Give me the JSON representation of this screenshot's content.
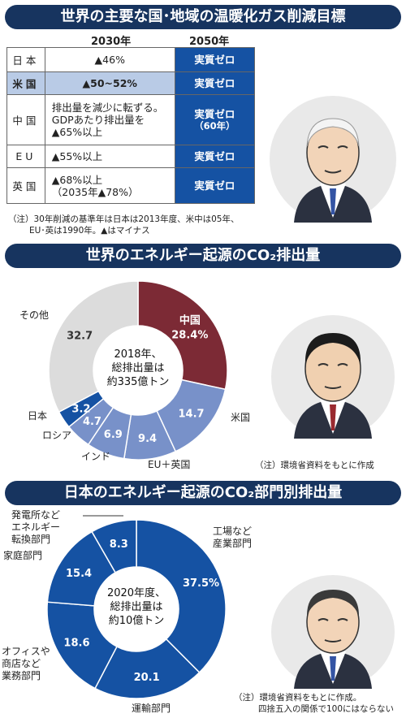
{
  "section1": {
    "title": "世界の主要な国･地域の温暖化ガス削減目標",
    "col_2030": "2030年",
    "col_2050": "2050年",
    "rows": [
      {
        "country": "日本",
        "y2030": [
          "▲46%"
        ],
        "y2050": [
          "実質ゼロ"
        ]
      },
      {
        "country": "米国",
        "y2030": [
          "▲50~52%"
        ],
        "y2050": [
          "実質ゼロ"
        ]
      },
      {
        "country": "中国",
        "y2030": [
          "排出量を減少に転ずる。",
          "GDPあたり排出量を",
          "▲65%以上"
        ],
        "y2050": [
          "実質ゼロ",
          "（60年）"
        ]
      },
      {
        "country": "EU",
        "y2030": [
          "▲55%以上"
        ],
        "y2050": [
          "実質ゼロ"
        ]
      },
      {
        "country": "英国",
        "y2030": [
          "▲68%以上",
          "（2035年▲78%）"
        ],
        "y2050": [
          "実質ゼロ"
        ]
      }
    ],
    "note_line1": "（注）30年削減の基準年は日本は2013年度、米中は05年、",
    "note_line2": "EU･英は1990年。▲はマイナス"
  },
  "section2": {
    "title": "世界のエネルギー起源のCO₂排出量",
    "center": [
      "2018年、",
      "総排出量は",
      "約335億トン"
    ],
    "note": "（注）環境省資料をもとに作成"
  },
  "section3": {
    "title": "日本のエネルギー起源のCO₂部門別排出量",
    "center": [
      "2020年度、",
      "総排出量は",
      "約10億トン"
    ],
    "note_line1": "（注）環境省資料をもとに作成。",
    "note_line2": "四捨五入の関係で100にはならない"
  },
  "chart_data": [
    {
      "type": "pie",
      "title": "世界のエネルギー起源のCO₂排出量",
      "categories": [
        "中国",
        "米国",
        "EU＋英国",
        "インド",
        "ロシア",
        "日本",
        "その他"
      ],
      "values": [
        28.4,
        14.7,
        9.4,
        6.9,
        4.7,
        3.2,
        32.7
      ],
      "value_labels": [
        "28.4%",
        "14.7",
        "9.4",
        "6.9",
        "4.7",
        "3.2",
        "32.7"
      ],
      "colors": [
        "#7c2a35",
        "#7891c9",
        "#7891c9",
        "#7891c9",
        "#7891c9",
        "#1552a3",
        "#dcdcdc"
      ],
      "donut": true
    },
    {
      "type": "pie",
      "title": "日本のエネルギー起源のCO₂部門別排出量",
      "categories": [
        "工場など産業部門",
        "運輸部門",
        "オフィスや商店など業務部門",
        "家庭部門",
        "発電所などエネルギー転換部門"
      ],
      "values": [
        37.5,
        20.1,
        18.6,
        15.4,
        8.3
      ],
      "value_labels": [
        "37.5%",
        "20.1",
        "18.6",
        "15.4",
        "8.3"
      ],
      "colors": [
        "#1552a3",
        "#1552a3",
        "#1552a3",
        "#1552a3",
        "#1552a3"
      ],
      "donut": true
    }
  ]
}
